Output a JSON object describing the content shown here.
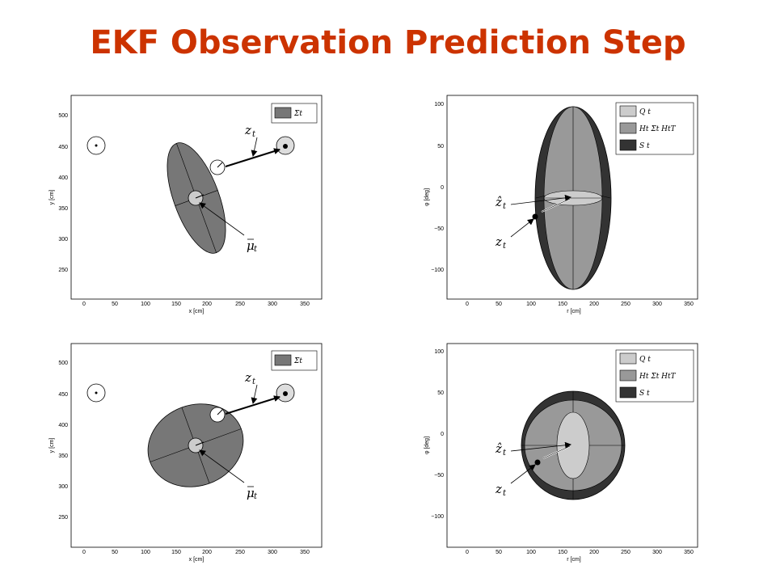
{
  "title": "EKF Observation Prediction Step",
  "left_panels": {
    "x_ticks": [
      "0",
      "50",
      "100",
      "150",
      "200",
      "250",
      "300",
      "350"
    ],
    "y_ticks": [
      "250",
      "300",
      "350",
      "400",
      "450",
      "500"
    ],
    "xlabel": "x [cm]",
    "ylabel": "y [cm]",
    "legend": "Σ̄t",
    "z_label": "z t",
    "mu_label": "μ̄ t"
  },
  "right_panels": {
    "x_ticks": [
      "0",
      "50",
      "100",
      "150",
      "200",
      "250",
      "300",
      "350"
    ],
    "y_ticks": [
      "100",
      "50",
      "0",
      "−50",
      "−100"
    ],
    "xlabel": "r [cm]",
    "ylabel": "φ [deg]",
    "legend": [
      "Q t",
      "Ht Σ̄t  HtT",
      "S t"
    ],
    "zhat_label": "ẑ t",
    "z_label": "z t"
  },
  "colors": {
    "title": "#cc3300",
    "dark": "#333333",
    "medium": "#999999",
    "light": "#cccccc",
    "belief": "#777777"
  }
}
